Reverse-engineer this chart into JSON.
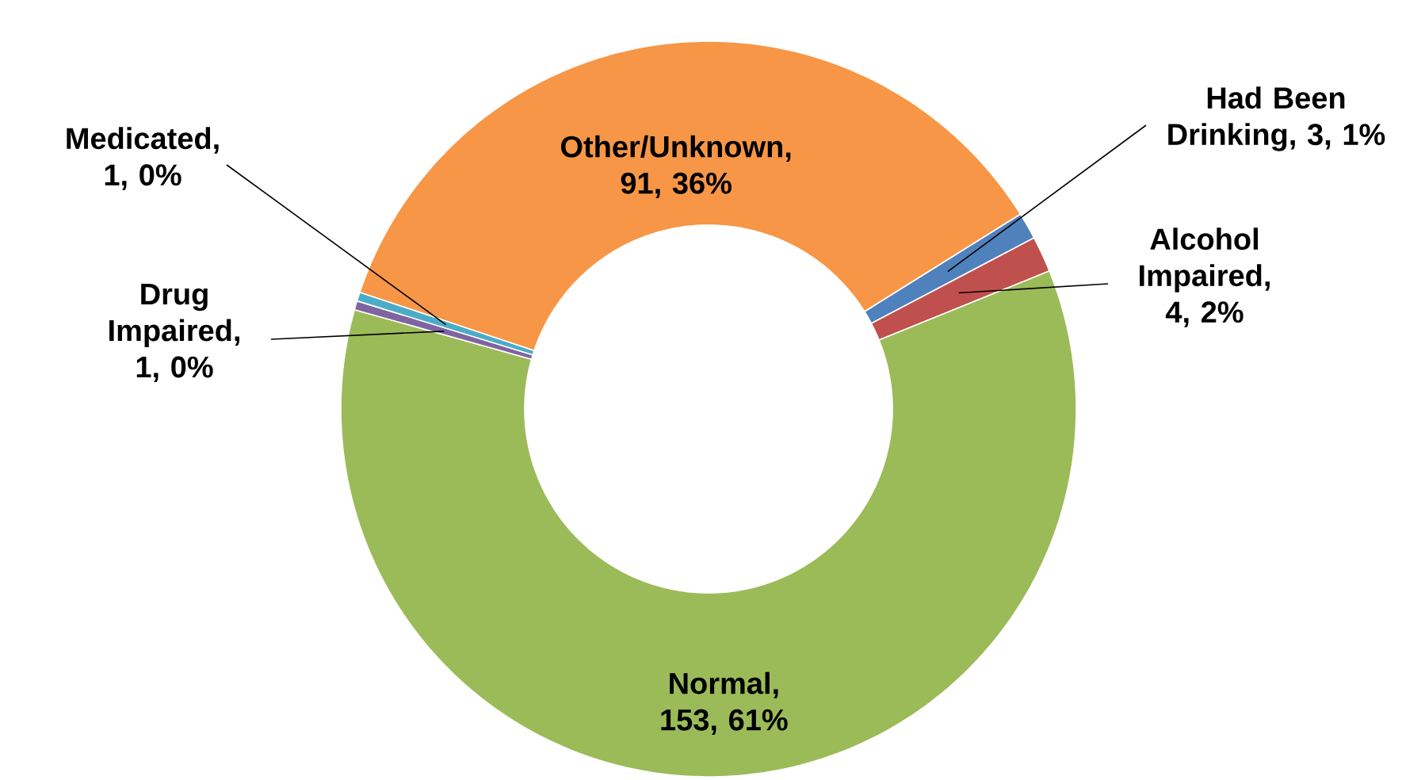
{
  "chart_data": {
    "type": "donut",
    "categories": [
      "Had Been Drinking, 3, 1%",
      "Alcohol Impaired, 4, 2%",
      "Normal, 153, 61%",
      "Drug Impaired, 1, 0%",
      "Medicated, 1, 0%",
      "Other/Unknown, 91, 36%"
    ],
    "values": [
      3,
      4,
      153,
      1,
      1,
      91
    ],
    "colors": [
      "#4f81bd",
      "#c0504d",
      "#9bbb59",
      "#8064a2",
      "#4bacc6",
      "#f79646"
    ]
  }
}
